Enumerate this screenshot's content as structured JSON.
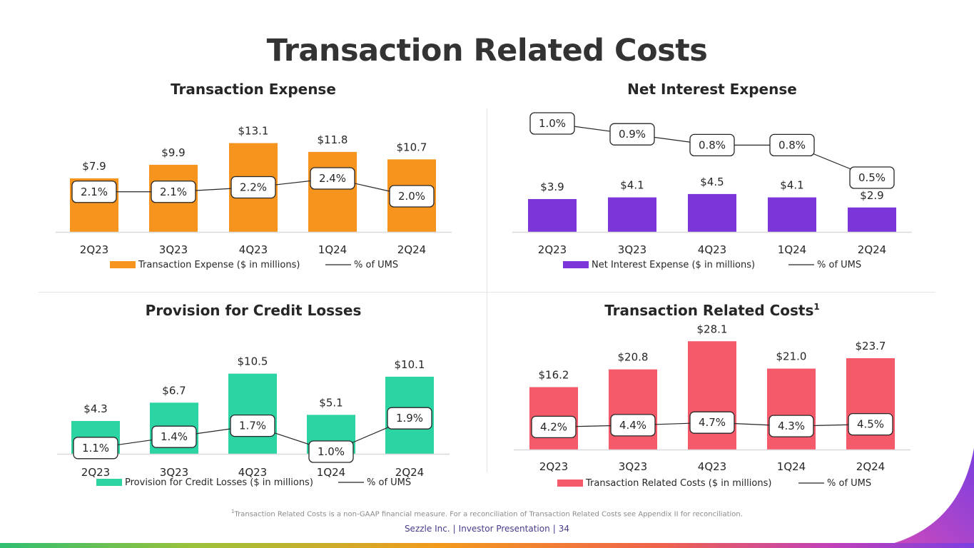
{
  "page": {
    "title": "Transaction Related Costs",
    "footnote_marker": "1",
    "footnote": "Transaction Related Costs is a non-GAAP financial measure. For a reconciliation of Transaction Related Costs see Appendix II for reconciliation.",
    "footer_company": "Sezzle Inc.",
    "footer_doc": "Investor Presentation",
    "footer_page": "34",
    "colors": {
      "title": "#333333",
      "footer": "#4a3a8a",
      "divider": "#e4e4e4"
    }
  },
  "chart_data": [
    {
      "type": "bar",
      "title": "Transaction Expense",
      "title_superscript": "",
      "categories": [
        "2Q23",
        "3Q23",
        "4Q23",
        "1Q24",
        "2Q24"
      ],
      "series": [
        {
          "name": "Transaction Expense ($ in millions)",
          "values": [
            7.9,
            9.9,
            13.1,
            11.8,
            10.7
          ],
          "labels": [
            "$7.9",
            "$9.9",
            "$13.1",
            "$11.8",
            "$10.7"
          ],
          "color": "#f7941d"
        },
        {
          "name": "% of UMS",
          "type": "line",
          "values": [
            2.1,
            2.1,
            2.2,
            2.4,
            2.0
          ],
          "labels": [
            "2.1%",
            "2.1%",
            "2.2%",
            "2.4%",
            "2.0%"
          ],
          "color": "#262626"
        }
      ],
      "ylim": [
        0,
        14
      ],
      "line_ylim": [
        0,
        4.2
      ],
      "grid": false,
      "legend": "bottom"
    },
    {
      "type": "bar",
      "title": "Net Interest Expense",
      "title_superscript": "",
      "categories": [
        "2Q23",
        "3Q23",
        "4Q23",
        "1Q24",
        "2Q24"
      ],
      "series": [
        {
          "name": "Net Interest Expense ($ in millions)",
          "values": [
            3.9,
            4.1,
            4.5,
            4.1,
            2.9
          ],
          "labels": [
            "$3.9",
            "$4.1",
            "$4.5",
            "$4.1",
            "$2.9"
          ],
          "color": "#7b35d8"
        },
        {
          "name": "% of UMS",
          "type": "line",
          "values": [
            1.0,
            0.9,
            0.8,
            0.8,
            0.5
          ],
          "labels": [
            "1.0%",
            "0.9%",
            "0.8%",
            "0.8%",
            "0.5%"
          ],
          "color": "#262626"
        }
      ],
      "ylim": [
        0,
        14
      ],
      "line_ylim": [
        0,
        1.1
      ],
      "grid": false,
      "legend": "bottom"
    },
    {
      "type": "bar",
      "title": "Provision for Credit Losses",
      "title_superscript": "",
      "categories": [
        "2Q23",
        "3Q23",
        "4Q23",
        "1Q24",
        "2Q24"
      ],
      "series": [
        {
          "name": "Provision for Credit Losses ($ in millions)",
          "values": [
            4.3,
            6.7,
            10.5,
            5.1,
            10.1
          ],
          "labels": [
            "$4.3",
            "$6.7",
            "$10.5",
            "$5.1",
            "$10.1"
          ],
          "color": "#2dd4a3"
        },
        {
          "name": "% of UMS",
          "type": "line",
          "values": [
            1.1,
            1.4,
            1.7,
            1.0,
            1.9
          ],
          "labels": [
            "1.1%",
            "1.4%",
            "1.7%",
            "1.0%",
            "1.9%"
          ],
          "color": "#262626"
        }
      ],
      "ylim": [
        0,
        11.3
      ],
      "line_ylim": [
        0,
        4.2
      ],
      "grid": false,
      "legend": "bottom"
    },
    {
      "type": "bar",
      "title": "Transaction Related Costs",
      "title_superscript": "1",
      "categories": [
        "2Q23",
        "3Q23",
        "4Q23",
        "1Q24",
        "2Q24"
      ],
      "series": [
        {
          "name": "Transaction Related Costs ($ in millions)",
          "values": [
            16.2,
            20.8,
            28.1,
            21.0,
            23.7
          ],
          "labels": [
            "$16.2",
            "$20.8",
            "$28.1",
            "$21.0",
            "$23.7"
          ],
          "color": "#f45a69"
        },
        {
          "name": "% of UMS",
          "type": "line",
          "values": [
            4.2,
            4.4,
            4.7,
            4.3,
            4.5
          ],
          "labels": [
            "4.2%",
            "4.4%",
            "4.7%",
            "4.3%",
            "4.5%"
          ],
          "color": "#262626"
        }
      ],
      "ylim": [
        0,
        30
      ],
      "line_ylim": [
        0,
        14
      ],
      "grid": false,
      "legend": "bottom"
    }
  ]
}
